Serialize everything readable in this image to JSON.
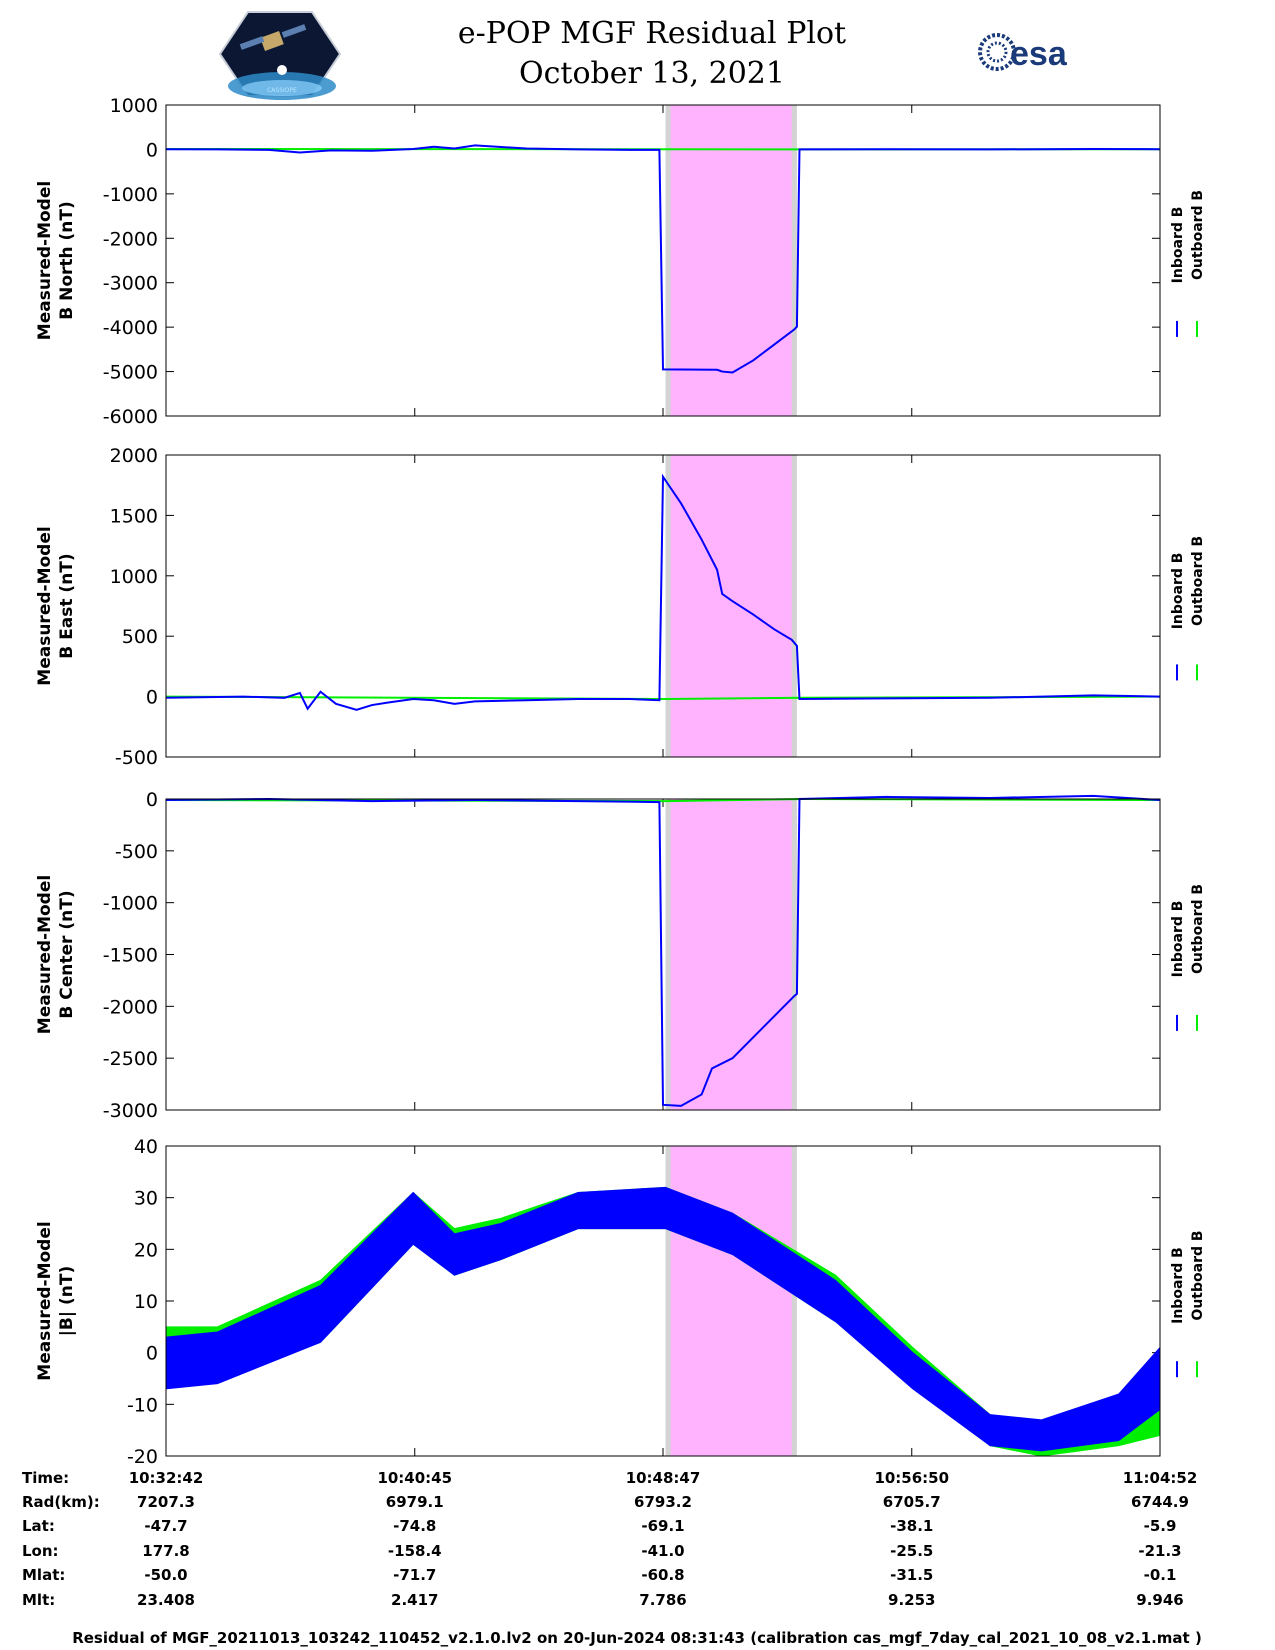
{
  "header": {
    "title_line1": "e-POP MGF Residual Plot",
    "title_line2": "October 13, 2021",
    "logo_left_text": "CASSIOPE",
    "logo_right_text": "esa"
  },
  "colors": {
    "inboard": "#0000ff",
    "outboard": "#00ee00",
    "shade_magenta": "#ffb3ff",
    "shade_gray": "#d3d3d3"
  },
  "legend": {
    "inboard": "Inboard B",
    "outboard": "Outboard B"
  },
  "chart_data": [
    {
      "type": "line",
      "ylabel_line1": "Measured-Model",
      "ylabel_line2": "B North (nT)",
      "ylim": [
        -6000,
        1000
      ],
      "yticks": [
        1000,
        0,
        -1000,
        -2000,
        -3000,
        -4000,
        -5000,
        -6000
      ],
      "xlim": [
        0,
        1930
      ],
      "shaded_region": {
        "gray": [
          970,
          1225
        ],
        "magenta": [
          980,
          1215
        ]
      },
      "series": [
        {
          "key": "outboard",
          "x": [
            0,
            960,
            970,
            1240,
            1930
          ],
          "y": [
            10,
            5,
            5,
            0,
            5
          ]
        },
        {
          "key": "inboard",
          "x": [
            0,
            100,
            200,
            260,
            320,
            400,
            480,
            520,
            560,
            600,
            700,
            800,
            900,
            958,
            965,
            1070,
            1080,
            1100,
            1140,
            1180,
            1220,
            1225,
            1230,
            1400,
            1600,
            1800,
            1930
          ],
          "y": [
            5,
            0,
            -10,
            -70,
            -20,
            -30,
            10,
            60,
            20,
            90,
            20,
            0,
            -10,
            -10,
            -4950,
            -4960,
            -5000,
            -5020,
            -4750,
            -4400,
            -4050,
            -3990,
            0,
            5,
            0,
            10,
            5
          ]
        }
      ]
    },
    {
      "type": "line",
      "ylabel_line1": "Measured-Model",
      "ylabel_line2": "B East (nT)",
      "ylim": [
        -500,
        2000
      ],
      "yticks": [
        2000,
        1500,
        1000,
        500,
        0,
        -500
      ],
      "xlim": [
        0,
        1930
      ],
      "shaded_region": {
        "gray": [
          970,
          1225
        ],
        "magenta": [
          980,
          1215
        ]
      },
      "series": [
        {
          "key": "outboard",
          "x": [
            0,
            960,
            970,
            1240,
            1930
          ],
          "y": [
            0,
            -20,
            -20,
            -10,
            0
          ]
        },
        {
          "key": "inboard",
          "x": [
            0,
            150,
            230,
            260,
            275,
            300,
            330,
            370,
            400,
            430,
            480,
            520,
            560,
            600,
            700,
            800,
            900,
            958,
            965,
            1000,
            1040,
            1070,
            1080,
            1100,
            1140,
            1180,
            1215,
            1225,
            1230,
            1400,
            1600,
            1800,
            1930
          ],
          "y": [
            -10,
            0,
            -10,
            30,
            -100,
            40,
            -60,
            -110,
            -70,
            -50,
            -20,
            -30,
            -60,
            -40,
            -30,
            -20,
            -20,
            -30,
            1820,
            1600,
            1300,
            1050,
            850,
            790,
            680,
            560,
            470,
            420,
            -20,
            -15,
            -10,
            10,
            0
          ]
        }
      ]
    },
    {
      "type": "line",
      "ylabel_line1": "Measured-Model",
      "ylabel_line2": "B Center (nT)",
      "ylim": [
        -3000,
        0
      ],
      "yticks": [
        0,
        -500,
        -1000,
        -1500,
        -2000,
        -2500,
        -3000
      ],
      "xlim": [
        0,
        1930
      ],
      "shaded_region": {
        "gray": [
          970,
          1225
        ],
        "magenta": [
          980,
          1215
        ]
      },
      "series": [
        {
          "key": "outboard",
          "x": [
            0,
            960,
            970,
            1240,
            1930
          ],
          "y": [
            -10,
            -20,
            -20,
            0,
            -10
          ]
        },
        {
          "key": "inboard",
          "x": [
            0,
            200,
            400,
            600,
            800,
            958,
            965,
            1000,
            1040,
            1060,
            1100,
            1140,
            1180,
            1220,
            1225,
            1230,
            1400,
            1600,
            1800,
            1930
          ],
          "y": [
            -10,
            0,
            -20,
            -10,
            -20,
            -30,
            -2950,
            -2960,
            -2850,
            -2600,
            -2500,
            -2300,
            -2100,
            -1900,
            -1880,
            0,
            20,
            10,
            30,
            -10
          ]
        }
      ]
    },
    {
      "type": "area",
      "ylabel_line1": "Measured-Model",
      "ylabel_line2": "|B| (nT)",
      "ylim": [
        -20,
        40
      ],
      "yticks": [
        40,
        30,
        20,
        10,
        0,
        -10,
        -20
      ],
      "xlim": [
        0,
        1930
      ],
      "shaded_region": {
        "gray": [
          970,
          1225
        ],
        "magenta": [
          980,
          1215
        ]
      },
      "series": [
        {
          "key": "outboard",
          "x": [
            0,
            100,
            300,
            480,
            560,
            650,
            800,
            970,
            1100,
            1300,
            1450,
            1600,
            1700,
            1850,
            1930
          ],
          "upper": [
            5,
            5,
            14,
            31,
            24,
            26,
            31,
            32,
            27,
            15,
            1,
            -12,
            -14,
            -10,
            -8
          ],
          "lower": [
            -5,
            -5,
            2,
            21,
            15,
            18,
            24,
            24,
            19,
            6,
            -6,
            -18,
            -20,
            -18,
            -16
          ]
        },
        {
          "key": "inboard",
          "x": [
            0,
            100,
            300,
            480,
            560,
            650,
            800,
            970,
            1100,
            1300,
            1450,
            1600,
            1700,
            1850,
            1930
          ],
          "upper": [
            3,
            4,
            13,
            31,
            23,
            25,
            31,
            32,
            27,
            14,
            0,
            -12,
            -13,
            -8,
            1
          ],
          "lower": [
            -7,
            -6,
            2,
            21,
            15,
            18,
            24,
            24,
            19,
            6,
            -7,
            -18,
            -19,
            -17,
            -11
          ]
        }
      ]
    }
  ],
  "orbit_table": {
    "row_labels": [
      "Time:",
      "Rad(km):",
      "Lat:",
      "Lon:",
      "Mlat:",
      "Mlt:"
    ],
    "tick_times_s": [
      0,
      483,
      965,
      1448,
      1930
    ],
    "columns": [
      [
        "10:32:42",
        "7207.3",
        "-47.7",
        "177.8",
        "-50.0",
        "23.408"
      ],
      [
        "10:40:45",
        "6979.1",
        "-74.8",
        "-158.4",
        "-71.7",
        "2.417"
      ],
      [
        "10:48:47",
        "6793.2",
        "-69.1",
        "-41.0",
        "-60.8",
        "7.786"
      ],
      [
        "10:56:50",
        "6705.7",
        "-38.1",
        "-25.5",
        "-31.5",
        "9.253"
      ],
      [
        "11:04:52",
        "6744.9",
        "-5.9",
        "-21.3",
        "-0.1",
        "9.946"
      ]
    ]
  },
  "footer": "Residual of MGF_20211013_103242_110452_v2.1.0.lv2 on 20-Jun-2024 08:31:43 (calibration cas_mgf_7day_cal_2021_10_08_v2.1.mat )"
}
